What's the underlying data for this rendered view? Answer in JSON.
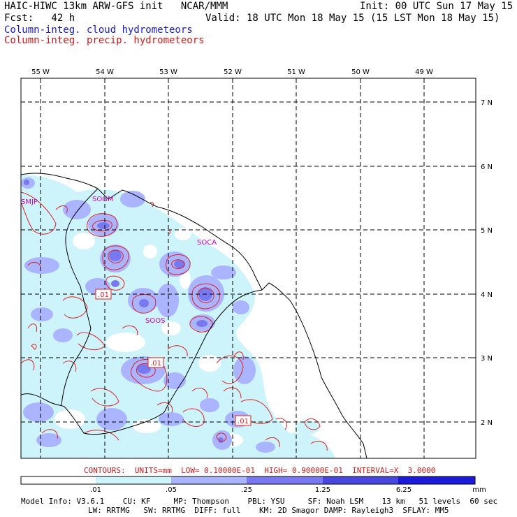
{
  "header": {
    "line1_left": "HAIC-HIWC 13km ARW-GFS init   NCAR/MMM",
    "line1_right": "Init: 00 UTC Sun 17 May 15",
    "line2_left": "Fcst:   42 h",
    "line2_right": "Valid: 18 UTC Mon 18 May 15 (15 LST Mon 18 May 15)",
    "field1": "Column-integ. cloud hydrometeors",
    "field2": "Column-integ. precip. hydrometeors"
  },
  "map": {
    "lon_labels": [
      "55 W",
      "54 W",
      "53 W",
      "52 W",
      "51 W",
      "50 W",
      "49 W"
    ],
    "lat_labels": [
      "7 N",
      "6 N",
      "5 N",
      "4 N",
      "3 N",
      "2 N"
    ],
    "stations": [
      "SMJP",
      "SOGM",
      "SOCA",
      "SOOS"
    ],
    "contour_labels": [
      ".01",
      ".01",
      ".01"
    ],
    "colors": {
      "lvl1": "#cdf3fb",
      "lvl2": "#aab4ff",
      "lvl3": "#7878f0",
      "lvl4": "#4848e0",
      "lvl5": "#1a1ad8",
      "contour": "#dd2222",
      "station": "#cc00cc"
    }
  },
  "contours_info": "CONTOURS:  UNITS=mm  LOW= 0.10000E-01  HIGH= 0.90000E-01  INTERVAL=X  3.0000",
  "colorbar": {
    "ticks": [
      ".01",
      ".05",
      ".25",
      "1.25",
      "6.25"
    ],
    "unit": "mm",
    "colors": [
      "#ffffff",
      "#cdf3fb",
      "#aab4ff",
      "#7878f0",
      "#4848e0",
      "#1a1ad8"
    ]
  },
  "model_info": {
    "line1": "Model Info: V3.6.1    CU: KF     MP: Thompson    PBL: YSU     SF: Noah LSM    13 km   51 levels  60 sec",
    "line2": "LW: RRTMG   SW: RRTMG  DIFF: full    KM: 2D Smagor DAMP: Rayleigh3  SFLAY: MM5"
  }
}
